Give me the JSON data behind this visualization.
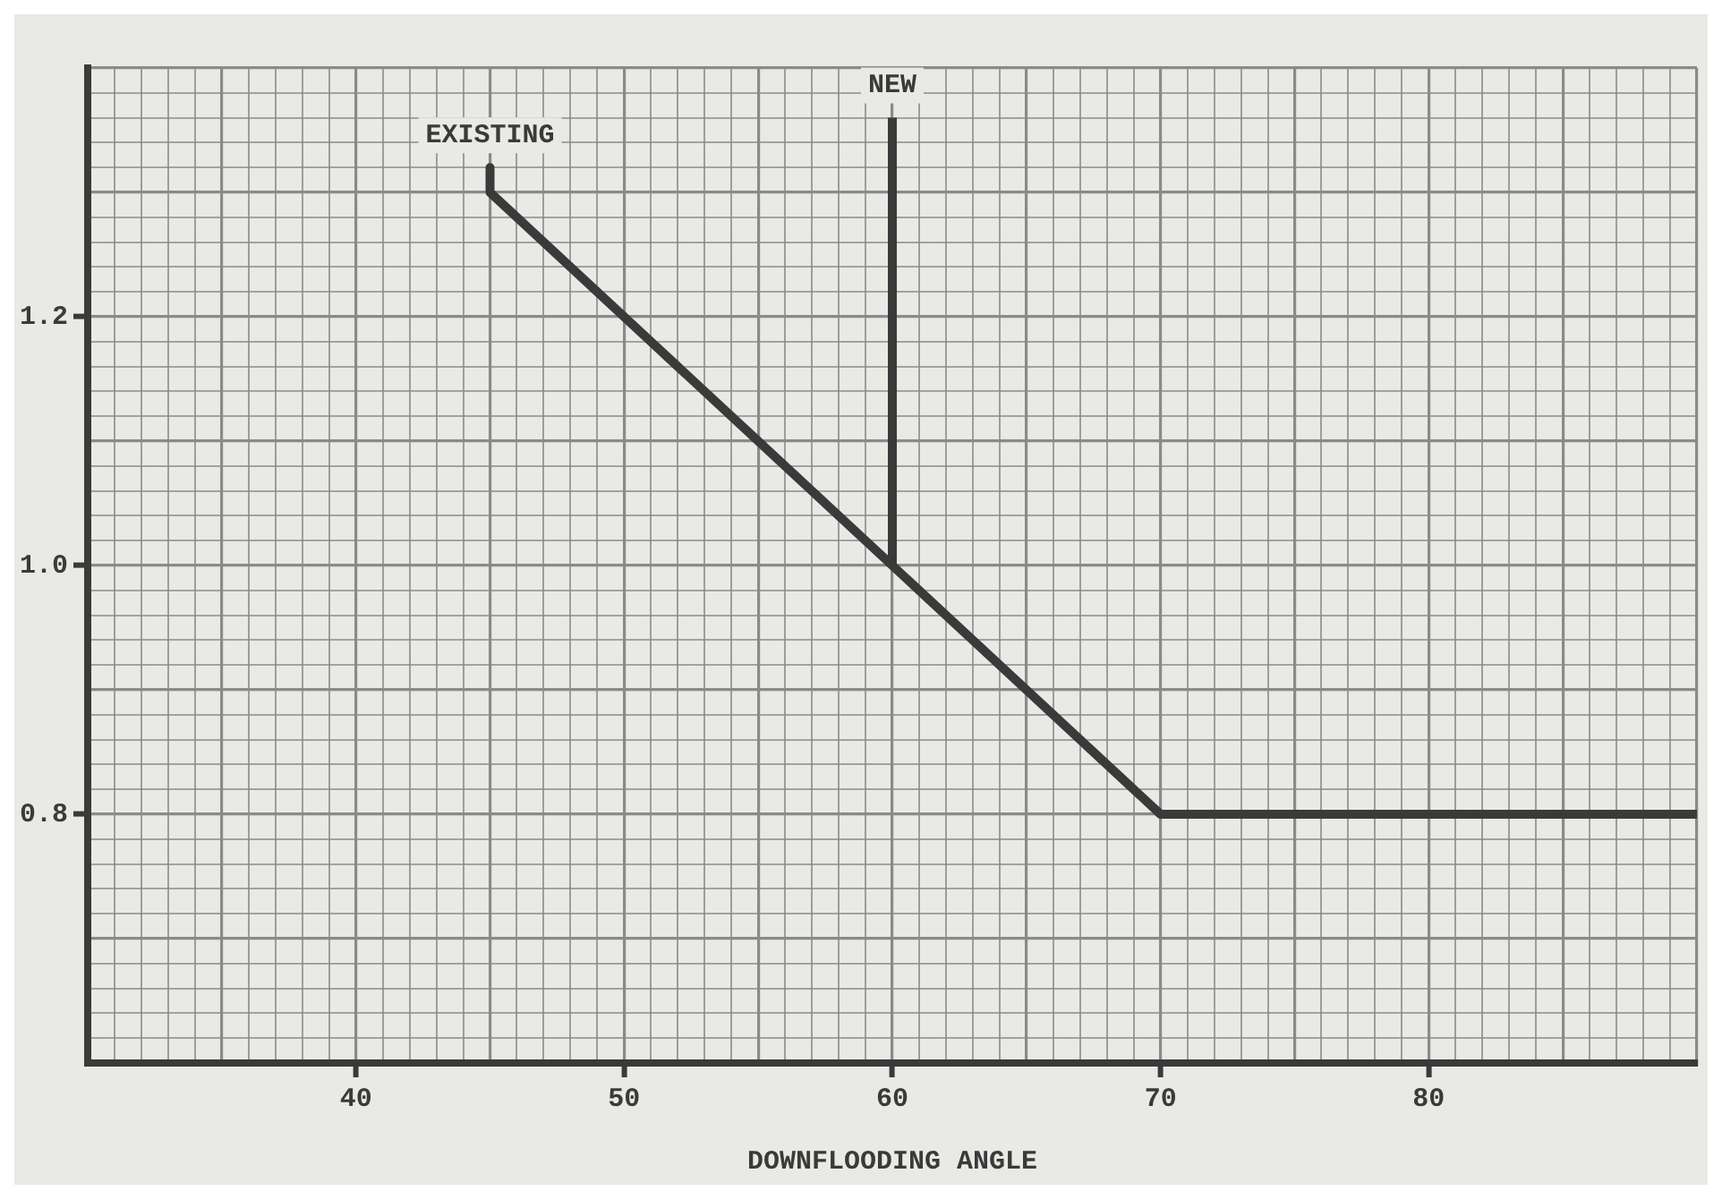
{
  "chart_data": {
    "type": "line",
    "xlabel": "DOWNFLOODING ANGLE",
    "series": [
      {
        "name": "EXISTING",
        "color": "#3a3a3a",
        "x": [
          45,
          45,
          70,
          90
        ],
        "values": [
          1.32,
          1.3,
          0.8,
          0.8
        ]
      },
      {
        "name": "NEW",
        "color": "#3a3a3a",
        "x": [
          60,
          60
        ],
        "values": [
          1.0,
          1.36
        ]
      }
    ],
    "xlim": [
      30,
      90
    ],
    "ylim": [
      0.6,
      1.4
    ],
    "xticks": [
      {
        "value": 30,
        "label": null
      },
      {
        "value": 31,
        "label": null
      },
      {
        "value": 32,
        "label": null
      },
      {
        "value": 33,
        "label": null
      },
      {
        "value": 34,
        "label": null
      },
      {
        "value": 35,
        "label": null
      },
      {
        "value": 36,
        "label": null
      },
      {
        "value": 37,
        "label": null
      },
      {
        "value": 38,
        "label": null
      },
      {
        "value": 39,
        "label": null
      },
      40,
      {
        "value": 41,
        "label": null
      },
      {
        "value": 42,
        "label": null
      },
      {
        "value": 43,
        "label": null
      },
      {
        "value": 44,
        "label": null
      },
      {
        "value": 45,
        "label": null
      },
      {
        "value": 46,
        "label": null
      },
      {
        "value": 47,
        "label": null
      },
      {
        "value": 48,
        "label": null
      },
      {
        "value": 49,
        "label": null
      },
      50,
      {
        "value": 51,
        "label": null
      },
      {
        "value": 52,
        "label": null
      },
      {
        "value": 53,
        "label": null
      },
      {
        "value": 54,
        "label": null
      },
      {
        "value": 55,
        "label": null
      },
      {
        "value": 56,
        "label": null
      },
      {
        "value": 57,
        "label": null
      },
      {
        "value": 58,
        "label": null
      },
      {
        "value": 59,
        "label": null
      },
      60,
      {
        "value": 61,
        "label": null
      },
      {
        "value": 62,
        "label": null
      },
      {
        "value": 63,
        "label": null
      },
      {
        "value": 64,
        "label": null
      },
      {
        "value": 65,
        "label": null
      },
      {
        "value": 66,
        "label": null
      },
      {
        "value": 67,
        "label": null
      },
      {
        "value": 68,
        "label": null
      },
      {
        "value": 69,
        "label": null
      },
      70,
      {
        "value": 71,
        "label": null
      },
      {
        "value": 72,
        "label": null
      },
      {
        "value": 73,
        "label": null
      },
      {
        "value": 74,
        "label": null
      },
      {
        "value": 75,
        "label": null
      },
      {
        "value": 76,
        "label": null
      },
      {
        "value": 77,
        "label": null
      },
      {
        "value": 78,
        "label": null
      },
      {
        "value": 79,
        "label": null
      },
      80,
      {
        "value": 81,
        "label": null
      },
      {
        "value": 82,
        "label": null
      },
      {
        "value": 83,
        "label": null
      },
      {
        "value": 84,
        "label": null
      },
      {
        "value": 85,
        "label": null
      },
      {
        "value": 86,
        "label": null
      },
      {
        "value": 87,
        "label": null
      },
      {
        "value": 88,
        "label": null
      },
      {
        "value": 89,
        "label": null
      },
      {
        "value": 90,
        "label": null
      }
    ],
    "yticks": [
      {
        "value": 0.6,
        "label": null
      },
      {
        "value": 0.62,
        "label": null
      },
      {
        "value": 0.64,
        "label": null
      },
      {
        "value": 0.66,
        "label": null
      },
      {
        "value": 0.68,
        "label": null
      },
      {
        "value": 0.7,
        "label": null
      },
      {
        "value": 0.72,
        "label": null
      },
      {
        "value": 0.74,
        "label": null
      },
      {
        "value": 0.76,
        "label": null
      },
      {
        "value": 0.78,
        "label": null
      },
      0.8,
      {
        "value": 0.82,
        "label": null
      },
      {
        "value": 0.84,
        "label": null
      },
      {
        "value": 0.86,
        "label": null
      },
      {
        "value": 0.88,
        "label": null
      },
      {
        "value": 0.9,
        "label": null
      },
      {
        "value": 0.92,
        "label": null
      },
      {
        "value": 0.94,
        "label": null
      },
      {
        "value": 0.96,
        "label": null
      },
      {
        "value": 0.98,
        "label": null
      },
      {
        "value": 1.0,
        "label": "1.0"
      },
      {
        "value": 1.02,
        "label": null
      },
      {
        "value": 1.04,
        "label": null
      },
      {
        "value": 1.06,
        "label": null
      },
      {
        "value": 1.08,
        "label": null
      },
      {
        "value": 1.1,
        "label": null
      },
      {
        "value": 1.12,
        "label": null
      },
      {
        "value": 1.14,
        "label": null
      },
      {
        "value": 1.16,
        "label": null
      },
      {
        "value": 1.18,
        "label": null
      },
      1.2,
      {
        "value": 1.22,
        "label": null
      },
      {
        "value": 1.24,
        "label": null
      },
      {
        "value": 1.26,
        "label": null
      },
      {
        "value": 1.28,
        "label": null
      },
      {
        "value": 1.3,
        "label": null
      },
      {
        "value": 1.32,
        "label": null
      },
      {
        "value": 1.34,
        "label": null
      },
      {
        "value": 1.36,
        "label": null
      },
      {
        "value": 1.38,
        "label": null
      },
      {
        "value": 1.4,
        "label": null
      }
    ],
    "grid": true,
    "legend": false,
    "marker": "none",
    "line_style": "solid"
  }
}
